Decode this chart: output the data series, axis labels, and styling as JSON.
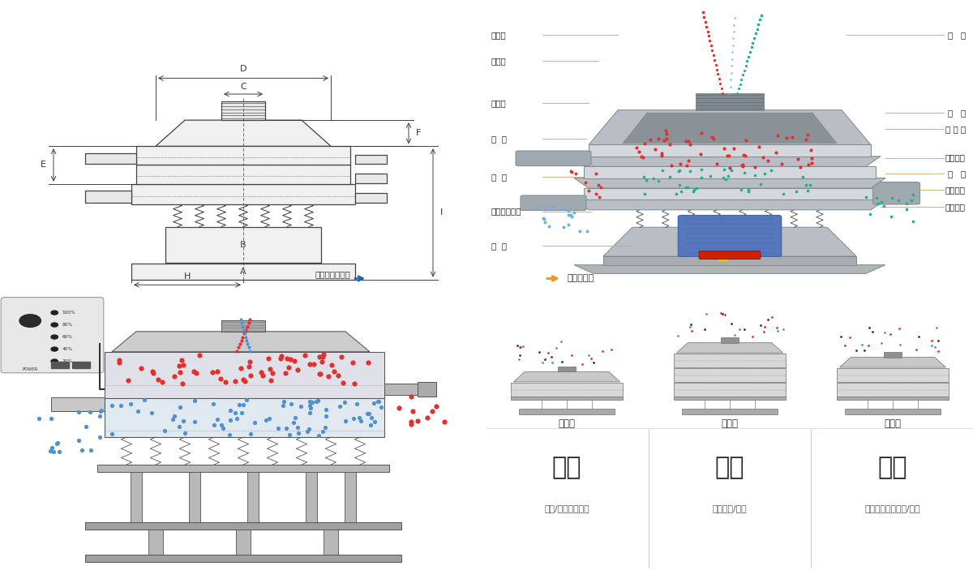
{
  "bg_color": "#ffffff",
  "line_color": "#444444",
  "tan_line": "#c8aa80",
  "left_labels": [
    "进料口",
    "防尘盖",
    "出料口",
    "束  环",
    "弹  簧",
    "运输固定螺栓",
    "机  座"
  ],
  "right_labels": [
    "筛   网",
    "网   架",
    "加 重 块",
    "上部重锤",
    "筛   盘",
    "振动电机",
    "下部重锤"
  ],
  "bottom_labels_left": [
    "分级",
    "颗粒/粉末准确分级"
  ],
  "bottom_labels_mid": [
    "过滤",
    "去除异物/结块"
  ],
  "bottom_labels_right": [
    "除杂",
    "去除液体中的颗粒/异物"
  ],
  "bottom_type_labels": [
    "单层式",
    "三层式",
    "双层式"
  ],
  "red_color": "#e03030",
  "blue_color": "#5090d0",
  "teal_color": "#20b090",
  "yellow_color": "#f0c010",
  "silver": "#b8bec4",
  "silver_light": "#d4d8dc",
  "silver_dark": "#9098a0",
  "arrow_orange": "#e89c2f",
  "arrow_blue": "#1565C0"
}
